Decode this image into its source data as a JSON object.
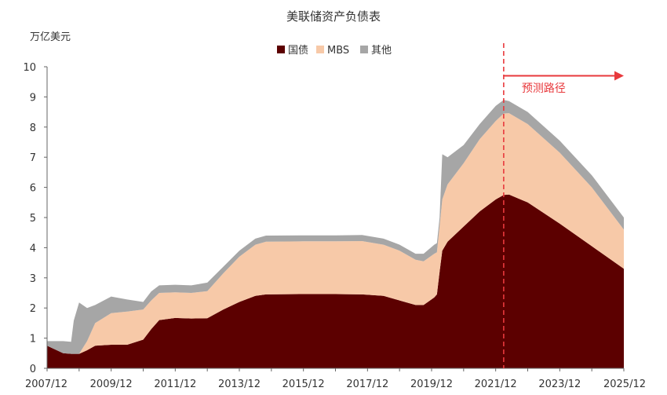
{
  "chart_data": {
    "type": "area",
    "stacked": true,
    "title": "美联储资产负债表",
    "y_unit_label": "万亿美元",
    "ylim": [
      0,
      10
    ],
    "y_ticks": [
      0,
      1,
      2,
      3,
      4,
      5,
      6,
      7,
      8,
      9,
      10
    ],
    "x_range": [
      "2007-12",
      "2025-12"
    ],
    "x_tick_labels": [
      "2007/12",
      "2009/12",
      "2011/12",
      "2013/12",
      "2015/12",
      "2017/12",
      "2019/12",
      "2021/12",
      "2023/12",
      "2025/12"
    ],
    "grid": false,
    "legend_position": "top-center",
    "x": [
      "2007-12",
      "2008-06",
      "2008-09",
      "2008-10",
      "2008-12",
      "2009-03",
      "2009-06",
      "2009-12",
      "2010-06",
      "2010-12",
      "2011-03",
      "2011-06",
      "2011-12",
      "2012-06",
      "2012-12",
      "2013-06",
      "2013-12",
      "2014-06",
      "2014-10",
      "2015-12",
      "2016-12",
      "2017-10",
      "2018-06",
      "2018-12",
      "2019-06",
      "2019-09",
      "2020-01",
      "2020-02",
      "2020-03",
      "2020-04",
      "2020-06",
      "2020-12",
      "2021-06",
      "2021-12",
      "2022-03",
      "2022-05",
      "2022-12",
      "2023-12",
      "2024-12",
      "2025-12"
    ],
    "series": [
      {
        "name": "国债",
        "color": "#5c0000",
        "values": [
          0.75,
          0.5,
          0.48,
          0.48,
          0.48,
          0.6,
          0.75,
          0.78,
          0.78,
          0.95,
          1.3,
          1.6,
          1.67,
          1.65,
          1.66,
          1.95,
          2.2,
          2.4,
          2.45,
          2.46,
          2.46,
          2.45,
          2.4,
          2.25,
          2.1,
          2.1,
          2.35,
          2.45,
          3.2,
          3.9,
          4.2,
          4.7,
          5.2,
          5.6,
          5.75,
          5.76,
          5.5,
          4.8,
          4.05,
          3.3
        ]
      },
      {
        "name": "MBS",
        "color": "#f7c9a8",
        "values": [
          0,
          0,
          0,
          0,
          0,
          0.3,
          0.75,
          1.05,
          1.1,
          1.0,
          0.95,
          0.9,
          0.85,
          0.85,
          0.9,
          1.2,
          1.5,
          1.7,
          1.75,
          1.75,
          1.75,
          1.77,
          1.7,
          1.65,
          1.5,
          1.45,
          1.45,
          1.4,
          1.5,
          1.7,
          1.9,
          2.1,
          2.4,
          2.6,
          2.7,
          2.7,
          2.6,
          2.35,
          1.95,
          1.3
        ]
      },
      {
        "name": "其他",
        "color": "#a6a6a6",
        "values": [
          0.15,
          0.4,
          0.4,
          1.1,
          1.7,
          1.1,
          0.6,
          0.55,
          0.4,
          0.25,
          0.3,
          0.25,
          0.25,
          0.25,
          0.28,
          0.22,
          0.2,
          0.2,
          0.2,
          0.2,
          0.2,
          0.2,
          0.2,
          0.2,
          0.2,
          0.25,
          0.3,
          0.3,
          0.3,
          1.5,
          0.9,
          0.6,
          0.5,
          0.5,
          0.45,
          0.4,
          0.4,
          0.4,
          0.4,
          0.4
        ]
      }
    ],
    "annotations": [
      {
        "type": "vertical-dashed-line",
        "x": "2022-03",
        "color": "#e8393c"
      },
      {
        "type": "arrow",
        "from": "2022-03",
        "to": "2025-12",
        "y": 9.7,
        "color": "#e8393c"
      },
      {
        "type": "text",
        "text": "预测路径",
        "x": "2023-06",
        "y": 9.3,
        "color": "#e8393c"
      }
    ]
  }
}
